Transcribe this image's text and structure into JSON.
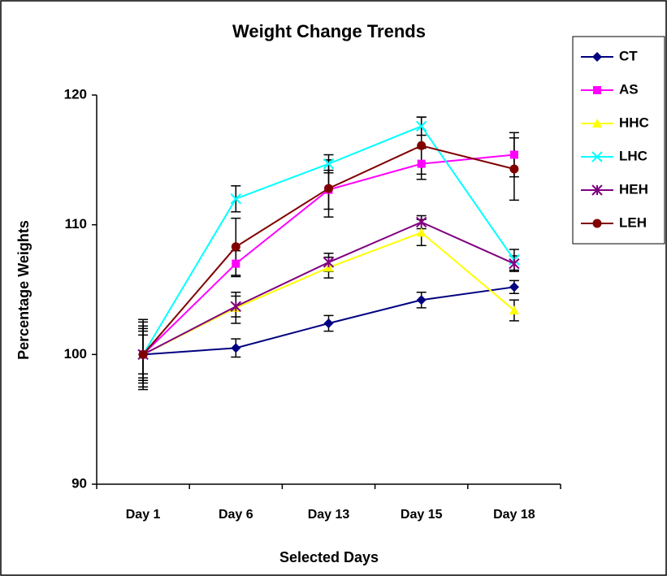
{
  "chart_data": {
    "type": "line",
    "title": "Weight Change Trends",
    "x_label": "Selected Days",
    "y_label": "Percentage Weights",
    "categories": [
      "Day 1",
      "Day 6",
      "Day 13",
      "Day 15",
      "Day 18"
    ],
    "ylim": [
      90,
      120
    ],
    "yticks": [
      90,
      100,
      110,
      120
    ],
    "legend": "right",
    "series": [
      {
        "name": "CT",
        "color": "#000080",
        "marker": "diamond",
        "values": [
          100,
          100.5,
          102.4,
          104.2,
          105.2
        ],
        "errors": [
          2.5,
          0.7,
          0.6,
          0.6,
          0.5
        ]
      },
      {
        "name": "AS",
        "color": "#ff00ff",
        "marker": "square",
        "values": [
          100,
          107,
          112.7,
          114.7,
          115.4
        ],
        "errors": [
          2.0,
          1.0,
          1.5,
          1.2,
          1.7
        ]
      },
      {
        "name": "HHC",
        "color": "#ffff00",
        "marker": "triangle",
        "values": [
          100,
          103.6,
          106.7,
          109.4,
          103.4
        ],
        "errors": [
          1.5,
          1.2,
          0.8,
          1.0,
          0.8
        ]
      },
      {
        "name": "LHC",
        "color": "#00ffff",
        "marker": "x",
        "values": [
          100,
          112,
          114.7,
          117.6,
          107.3
        ],
        "errors": [
          2.7,
          1.0,
          0.7,
          0.7,
          0.8
        ]
      },
      {
        "name": "HEH",
        "color": "#800080",
        "marker": "star",
        "values": [
          100,
          103.7,
          107.1,
          110.2,
          107
        ],
        "errors": [
          1.8,
          0.8,
          0.7,
          0.5,
          0.6
        ]
      },
      {
        "name": "LEH",
        "color": "#800000",
        "marker": "circle",
        "values": [
          100,
          108.3,
          112.8,
          116.1,
          114.3
        ],
        "errors": [
          2.2,
          2.2,
          2.2,
          2.2,
          2.4
        ]
      }
    ]
  }
}
